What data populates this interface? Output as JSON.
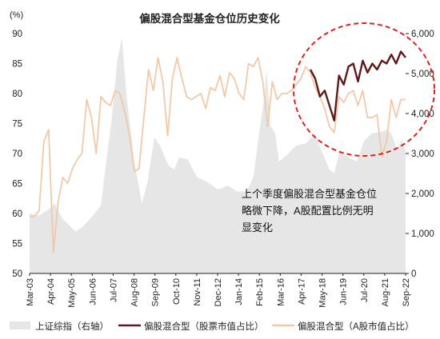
{
  "chart_data": {
    "type": "line",
    "title": "偏股混合型基金仓位历史变化",
    "left_axis_unit": "(%)",
    "left_axis_range": [
      50,
      90
    ],
    "left_ticks": [
      "90",
      "85",
      "80",
      "75",
      "70",
      "65",
      "60",
      "55",
      "50"
    ],
    "right_axis_range": [
      0,
      6000
    ],
    "right_ticks": [
      "6,000",
      "5,000",
      "4,000",
      "3,000",
      "2,000",
      "1,000",
      "0"
    ],
    "x_ticks": [
      "Mar-03",
      "Apr-04",
      "May-05",
      "Jun-06",
      "Jul-07",
      "Aug-08",
      "Sep-09",
      "Oct-10",
      "Nov-11",
      "Dec-12",
      "Jan-14",
      "Feb-15",
      "Mar-16",
      "Apr-17",
      "May-18",
      "Jun-19",
      "Jul-20",
      "Aug-21",
      "Sep-22"
    ],
    "x_range": [
      2003.0,
      2022.75
    ],
    "grid": false,
    "legend_position": "bottom",
    "annotation": [
      "上个季度偏股混合型基金仓位",
      "略微下降，A股配置比例无明",
      "显变化"
    ],
    "series": [
      {
        "name": "上证综指（右轴）",
        "kind": "area",
        "axis": "right",
        "color": "#e6e6e6",
        "points": [
          [
            2003.0,
            1500
          ],
          [
            2003.5,
            1450
          ],
          [
            2004.0,
            1600
          ],
          [
            2004.3,
            1750
          ],
          [
            2004.75,
            1350
          ],
          [
            2005.0,
            1250
          ],
          [
            2005.4,
            1050
          ],
          [
            2005.75,
            1150
          ],
          [
            2006.25,
            1400
          ],
          [
            2006.75,
            1700
          ],
          [
            2007.0,
            2700
          ],
          [
            2007.3,
            3800
          ],
          [
            2007.6,
            5300
          ],
          [
            2007.85,
            5900
          ],
          [
            2008.1,
            4400
          ],
          [
            2008.5,
            2800
          ],
          [
            2008.9,
            1750
          ],
          [
            2009.2,
            2300
          ],
          [
            2009.55,
            3400
          ],
          [
            2009.85,
            3200
          ],
          [
            2010.3,
            2700
          ],
          [
            2010.6,
            2600
          ],
          [
            2010.85,
            2900
          ],
          [
            2011.3,
            2850
          ],
          [
            2011.8,
            2400
          ],
          [
            2012.3,
            2300
          ],
          [
            2012.9,
            2100
          ],
          [
            2013.4,
            2200
          ],
          [
            2013.9,
            2050
          ],
          [
            2014.4,
            2050
          ],
          [
            2014.75,
            2400
          ],
          [
            2015.0,
            3300
          ],
          [
            2015.3,
            4300
          ],
          [
            2015.45,
            5100
          ],
          [
            2015.65,
            3700
          ],
          [
            2015.9,
            3500
          ],
          [
            2016.1,
            2800
          ],
          [
            2016.6,
            3000
          ],
          [
            2017.0,
            3200
          ],
          [
            2017.5,
            3250
          ],
          [
            2018.0,
            3500
          ],
          [
            2018.3,
            3100
          ],
          [
            2018.75,
            2600
          ],
          [
            2019.0,
            2500
          ],
          [
            2019.3,
            3100
          ],
          [
            2019.75,
            2900
          ],
          [
            2020.2,
            2800
          ],
          [
            2020.55,
            3300
          ],
          [
            2020.95,
            3500
          ],
          [
            2021.5,
            3550
          ],
          [
            2021.8,
            3600
          ],
          [
            2022.0,
            3500
          ],
          [
            2022.3,
            3100
          ],
          [
            2022.55,
            3350
          ],
          [
            2022.75,
            3050
          ]
        ]
      },
      {
        "name": "偏股混合型（股票市值占比）",
        "kind": "line",
        "axis": "left",
        "color": "#5e1a1a",
        "points": [
          [
            2017.75,
            84.0
          ],
          [
            2018.0,
            82.5
          ],
          [
            2018.25,
            79.5
          ],
          [
            2018.5,
            80.5
          ],
          [
            2018.75,
            78.0
          ],
          [
            2019.0,
            75.5
          ],
          [
            2019.25,
            83.0
          ],
          [
            2019.5,
            81.5
          ],
          [
            2019.75,
            84.5
          ],
          [
            2020.0,
            85.0
          ],
          [
            2020.25,
            82.0
          ],
          [
            2020.5,
            85.5
          ],
          [
            2020.75,
            83.5
          ],
          [
            2021.0,
            85.0
          ],
          [
            2021.25,
            84.0
          ],
          [
            2021.5,
            85.5
          ],
          [
            2021.75,
            85.0
          ],
          [
            2022.0,
            86.5
          ],
          [
            2022.25,
            85.0
          ],
          [
            2022.5,
            87.0
          ],
          [
            2022.75,
            86.0
          ]
        ]
      },
      {
        "name": "偏股混合型（A股市值占比）",
        "kind": "line",
        "axis": "left",
        "color": "#f2c9a8",
        "points": [
          [
            2003.0,
            59.5
          ],
          [
            2003.25,
            59.5
          ],
          [
            2003.5,
            60.5
          ],
          [
            2003.75,
            72.0
          ],
          [
            2004.0,
            74.0
          ],
          [
            2004.25,
            53.5
          ],
          [
            2004.5,
            62.0
          ],
          [
            2004.75,
            66.0
          ],
          [
            2005.0,
            65.0
          ],
          [
            2005.25,
            67.5
          ],
          [
            2005.5,
            69.0
          ],
          [
            2005.75,
            70.0
          ],
          [
            2006.0,
            79.0
          ],
          [
            2006.25,
            76.0
          ],
          [
            2006.5,
            70.0
          ],
          [
            2006.75,
            79.5
          ],
          [
            2007.0,
            78.5
          ],
          [
            2007.25,
            78.0
          ],
          [
            2007.5,
            80.5
          ],
          [
            2007.75,
            80.0
          ],
          [
            2008.0,
            77.0
          ],
          [
            2008.25,
            73.0
          ],
          [
            2008.5,
            67.0
          ],
          [
            2008.75,
            67.5
          ],
          [
            2009.0,
            76.0
          ],
          [
            2009.25,
            84.0
          ],
          [
            2009.5,
            80.5
          ],
          [
            2009.75,
            86.0
          ],
          [
            2010.0,
            82.0
          ],
          [
            2010.25,
            73.0
          ],
          [
            2010.5,
            82.5
          ],
          [
            2010.75,
            86.0
          ],
          [
            2011.0,
            82.5
          ],
          [
            2011.25,
            79.5
          ],
          [
            2011.5,
            79.0
          ],
          [
            2011.75,
            79.5
          ],
          [
            2012.0,
            80.0
          ],
          [
            2012.25,
            77.5
          ],
          [
            2012.5,
            81.0
          ],
          [
            2012.75,
            80.5
          ],
          [
            2013.0,
            83.0
          ],
          [
            2013.25,
            79.5
          ],
          [
            2013.5,
            83.5
          ],
          [
            2013.75,
            82.5
          ],
          [
            2014.0,
            80.0
          ],
          [
            2014.25,
            79.0
          ],
          [
            2014.5,
            85.0
          ],
          [
            2014.75,
            84.5
          ],
          [
            2015.0,
            86.0
          ],
          [
            2015.25,
            82.0
          ],
          [
            2015.5,
            74.5
          ],
          [
            2015.75,
            82.0
          ],
          [
            2016.0,
            79.0
          ],
          [
            2016.25,
            80.0
          ],
          [
            2016.5,
            80.0
          ],
          [
            2016.75,
            80.5
          ],
          [
            2017.0,
            81.5
          ],
          [
            2017.25,
            82.5
          ],
          [
            2017.5,
            84.5
          ],
          [
            2017.75,
            83.5
          ],
          [
            2018.0,
            81.0
          ],
          [
            2018.25,
            79.5
          ],
          [
            2018.5,
            77.5
          ],
          [
            2018.75,
            74.5
          ],
          [
            2019.0,
            73.5
          ],
          [
            2019.25,
            79.5
          ],
          [
            2019.5,
            78.5
          ],
          [
            2019.75,
            80.0
          ],
          [
            2020.0,
            80.5
          ],
          [
            2020.25,
            78.0
          ],
          [
            2020.5,
            80.5
          ],
          [
            2020.75,
            76.0
          ],
          [
            2021.0,
            76.0
          ],
          [
            2021.25,
            76.5
          ],
          [
            2021.5,
            69.5
          ],
          [
            2021.75,
            72.0
          ],
          [
            2022.0,
            79.0
          ],
          [
            2022.25,
            76.0
          ],
          [
            2022.5,
            79.0
          ],
          [
            2022.75,
            79.0
          ]
        ]
      }
    ]
  },
  "colors": {
    "highlight_circle": "#e02020"
  }
}
